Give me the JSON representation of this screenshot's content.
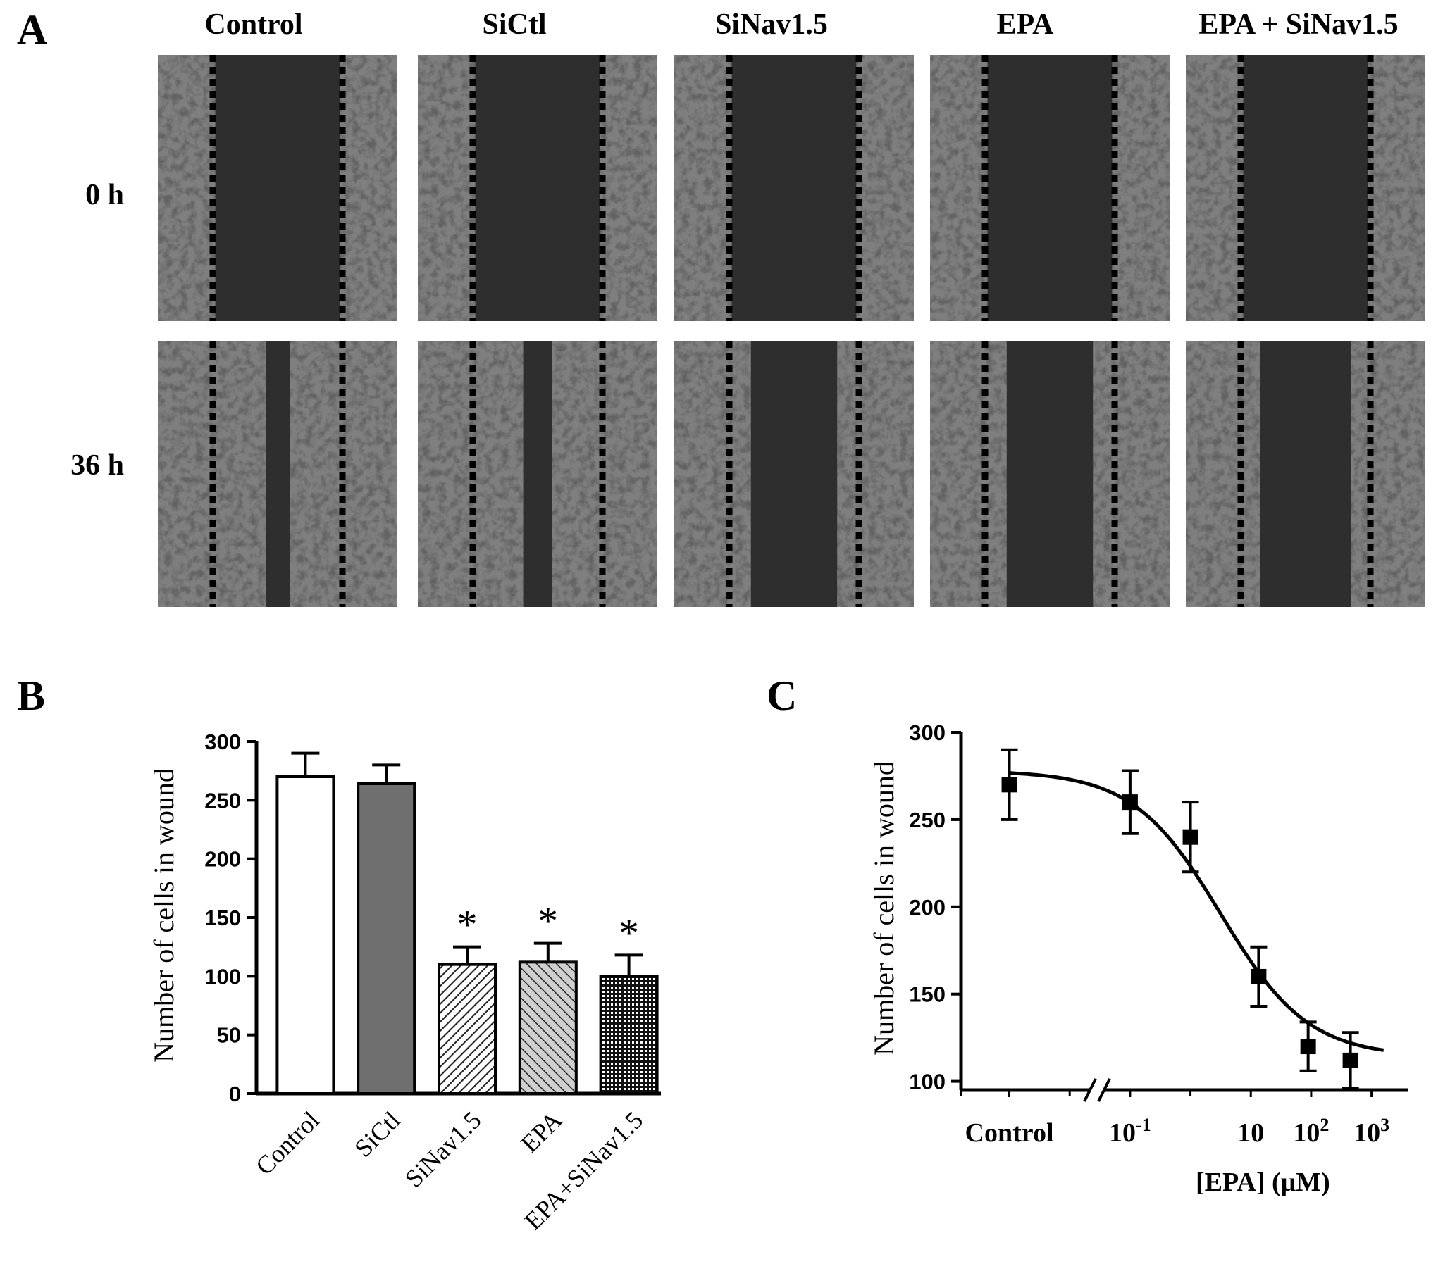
{
  "panels": {
    "a": {
      "letter": "A",
      "columns": [
        "Control",
        "SiCtl",
        "SiNav1.5",
        "EPA",
        "EPA + SiNav1.5"
      ],
      "rows": [
        "0 h",
        "36 h"
      ],
      "micrographs": [
        {
          "column": "Control",
          "row": "0 h",
          "image": "wound-scratch-micrograph",
          "wound_width_fraction": 0.52
        },
        {
          "column": "SiCtl",
          "row": "0 h",
          "image": "wound-scratch-micrograph",
          "wound_width_fraction": 0.52
        },
        {
          "column": "SiNav1.5",
          "row": "0 h",
          "image": "wound-scratch-micrograph",
          "wound_width_fraction": 0.52
        },
        {
          "column": "EPA",
          "row": "0 h",
          "image": "wound-scratch-micrograph",
          "wound_width_fraction": 0.52
        },
        {
          "column": "EPA + SiNav1.5",
          "row": "0 h",
          "image": "wound-scratch-micrograph",
          "wound_width_fraction": 0.52
        },
        {
          "column": "Control",
          "row": "36 h",
          "image": "wound-scratch-micrograph",
          "wound_width_fraction": 0.1
        },
        {
          "column": "SiCtl",
          "row": "36 h",
          "image": "wound-scratch-micrograph",
          "wound_width_fraction": 0.12
        },
        {
          "column": "SiNav1.5",
          "row": "36 h",
          "image": "wound-scratch-micrograph",
          "wound_width_fraction": 0.36
        },
        {
          "column": "EPA",
          "row": "36 h",
          "image": "wound-scratch-micrograph",
          "wound_width_fraction": 0.36
        },
        {
          "column": "EPA + SiNav1.5",
          "row": "36 h",
          "image": "wound-scratch-micrograph",
          "wound_width_fraction": 0.38
        }
      ]
    },
    "b": {
      "letter": "B"
    },
    "c": {
      "letter": "C"
    }
  },
  "chart_data": [
    {
      "type": "bar",
      "panel": "B",
      "title": "",
      "categories": [
        "Control",
        "SiCtl",
        "SiNav1.5",
        "EPA",
        "EPA+SiNav1.5"
      ],
      "values": [
        270,
        264,
        110,
        112,
        100
      ],
      "errors": [
        20,
        16,
        15,
        16,
        18
      ],
      "fills": [
        "white",
        "gray",
        "hatch-left",
        "hatch-right",
        "crosshatch"
      ],
      "significance": [
        "",
        "",
        "*",
        "*",
        "*"
      ],
      "xlabel": "",
      "ylabel": "Number of cells in wound",
      "ylim": [
        0,
        300
      ],
      "yticks": [
        0,
        50,
        100,
        150,
        200,
        250,
        300
      ],
      "xtick_rotation": "45° counter-clockwise"
    },
    {
      "type": "scatter",
      "panel": "C",
      "title": "",
      "xlabel": "[EPA] (μM)",
      "ylabel": "Number of cells in wound",
      "ylim": [
        95,
        300
      ],
      "yticks": [
        100,
        150,
        200,
        250,
        300
      ],
      "xscale": "log",
      "xlim_log10": [
        -3.8,
        3.6
      ],
      "axis_break": "between Control and log axis",
      "xticks": [
        {
          "label": "Control",
          "log10x": -3,
          "kind": "control"
        },
        {
          "label": "10",
          "sup": "-1",
          "log10x": -1
        },
        {
          "label": "10",
          "sup": "",
          "log10x": 1
        },
        {
          "label": "10",
          "sup": "2",
          "log10x": 2
        },
        {
          "label": "10",
          "sup": "3",
          "log10x": 3
        }
      ],
      "minor_xticks_log10": [
        -3.8,
        -2,
        0
      ],
      "points": [
        {
          "label": "Control",
          "log10x": -3.0,
          "y": 270,
          "err": 20
        },
        {
          "log10x": -1.0,
          "y": 260,
          "err": 18
        },
        {
          "log10x": 0.0,
          "y": 240,
          "err": 20
        },
        {
          "log10x": 1.13,
          "y": 160,
          "err": 17
        },
        {
          "log10x": 1.95,
          "y": 120,
          "err": 14
        },
        {
          "log10x": 2.65,
          "y": 112,
          "err": 16
        }
      ],
      "fit": {
        "model": "sigmoidal dose-response",
        "top": 278,
        "bottom": 114,
        "log10_ic50": 0.5,
        "hill_slope": -0.6,
        "log10x_range": [
          -3.0,
          3.2
        ]
      },
      "marker": "filled-square"
    }
  ]
}
